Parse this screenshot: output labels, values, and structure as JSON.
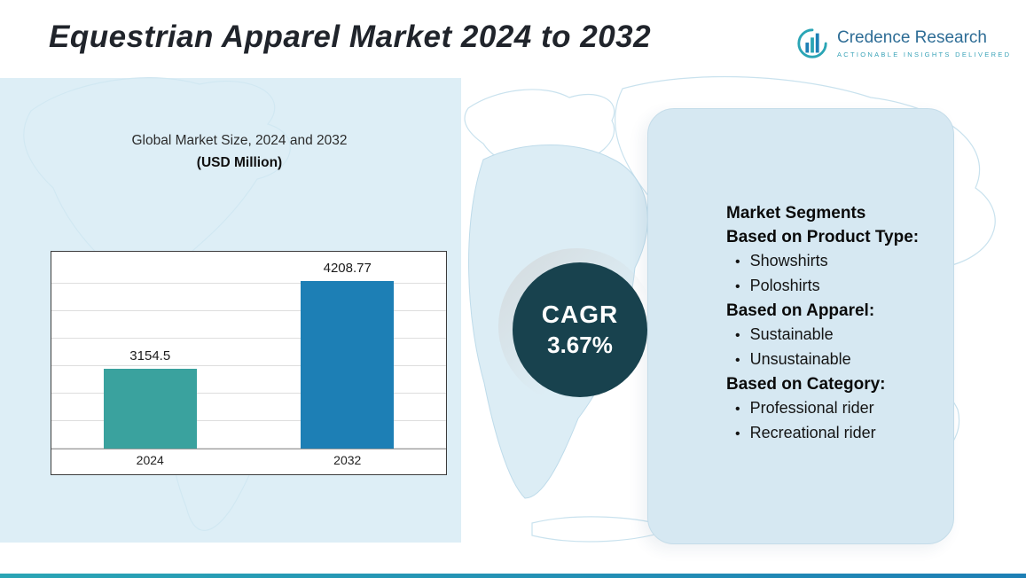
{
  "page": {
    "title": "Equestrian Apparel Market 2024 to 2032"
  },
  "logo": {
    "name": "Credence Research",
    "tagline": "ACTIONABLE INSIGHTS DELIVERED"
  },
  "chart": {
    "title": "Global Market Size, 2024 and 2032",
    "subtitle": "(USD Million)"
  },
  "chart_data": {
    "type": "bar",
    "title": "Global Market Size, 2024 and 2032 (USD Million)",
    "categories": [
      "2024",
      "2032"
    ],
    "values": [
      3154.5,
      4208.77
    ],
    "bar_colors": [
      "#3aa29e",
      "#1d7fb5"
    ],
    "ylim": [
      2200,
      4500
    ],
    "grid": true,
    "legend": false,
    "xlabel": "",
    "ylabel": ""
  },
  "cagr": {
    "label": "CAGR",
    "value": "3.67%"
  },
  "segments": {
    "lines": [
      {
        "style": "heading",
        "text": "Market Segments"
      },
      {
        "style": "heading",
        "text": "Based on Product Type:"
      },
      {
        "style": "bullet",
        "text": "Showshirts"
      },
      {
        "style": "bullet",
        "text": "Poloshirts"
      },
      {
        "style": "heading",
        "text": "Based on Apparel:"
      },
      {
        "style": "bullet",
        "text": "Sustainable"
      },
      {
        "style": "bullet",
        "text": "Unsustainable"
      },
      {
        "style": "heading",
        "text": "Based on Category:"
      },
      {
        "style": "bullet",
        "text": "Professional rider"
      },
      {
        "style": "bullet",
        "text": "Recreational rider"
      }
    ]
  },
  "colors": {
    "accent_teal": "#2aa5b5",
    "bar_2024": "#3aa29e",
    "bar_2032": "#1d7fb5",
    "cagr_circle": "#18424e",
    "panel_blue": "#d6e8f2"
  }
}
